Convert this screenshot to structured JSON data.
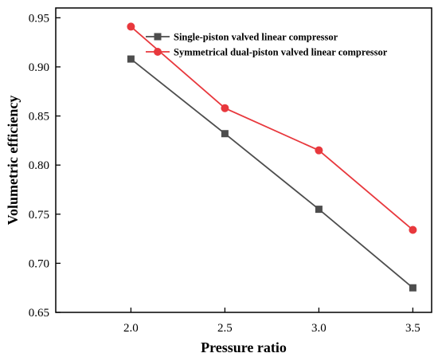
{
  "chart_data": {
    "type": "line",
    "xlabel": "Pressure ratio",
    "ylabel": "Volumetric efficiency",
    "x": [
      2.0,
      2.5,
      3.0,
      3.5
    ],
    "x_tick_labels": [
      "2.0",
      "2.5",
      "3.0",
      "3.5"
    ],
    "y_tick_values": [
      0.65,
      0.7,
      0.75,
      0.8,
      0.85,
      0.9,
      0.95
    ],
    "y_tick_labels": [
      "0.65",
      "0.70",
      "0.75",
      "0.80",
      "0.85",
      "0.90",
      "0.95"
    ],
    "xlim": [
      1.6,
      3.6
    ],
    "ylim": [
      0.65,
      0.96
    ],
    "grid": false,
    "legend_position": "top-right",
    "series": [
      {
        "name": "Single-piston valved linear compressor",
        "values": [
          0.908,
          0.832,
          0.755,
          0.675
        ],
        "color": "#4d4d4d",
        "marker": "square"
      },
      {
        "name": "Symmetrical dual-piston valved linear compressor",
        "values": [
          0.941,
          0.858,
          0.815,
          0.734
        ],
        "color": "#e8383d",
        "marker": "circle"
      }
    ]
  }
}
